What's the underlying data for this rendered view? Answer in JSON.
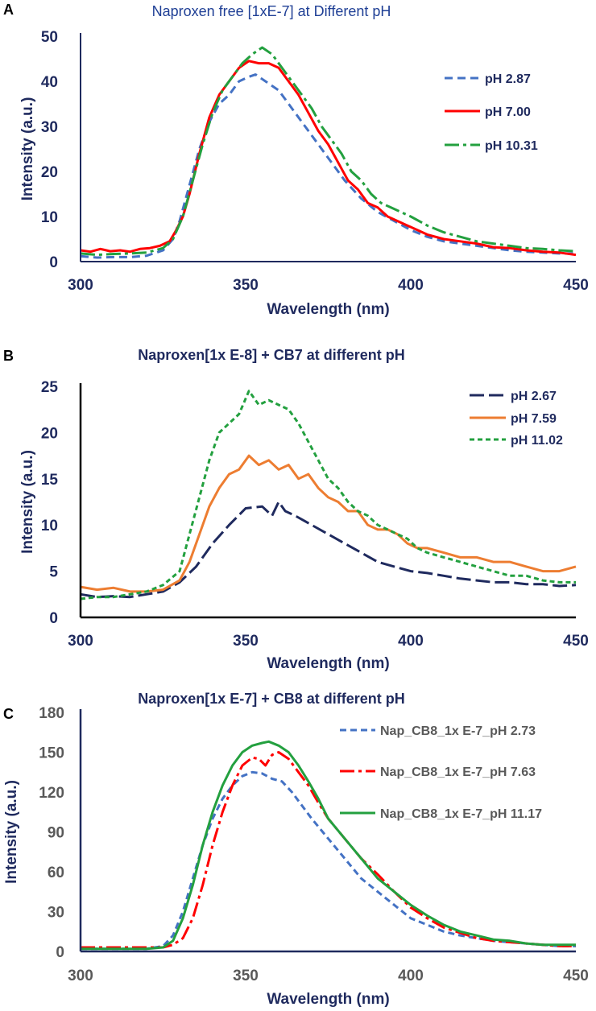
{
  "chart_data": [
    {
      "type": "line",
      "panel": "A",
      "title": "Naproxen free [1xE-7] at Different pH",
      "xlabel": "Wavelength (nm)",
      "ylabel": "Intensity (a.u.)",
      "xlim": [
        300,
        450
      ],
      "ylim": [
        0,
        50
      ],
      "xticks": [
        300,
        350,
        400,
        450
      ],
      "yticks": [
        0,
        10,
        20,
        30,
        40,
        50
      ],
      "grid": false,
      "legend_position": "right",
      "colors": {
        "title": "#1f3f95",
        "axis_text": "#1f2a5e",
        "axis_line": "#1f2a5e"
      },
      "series": [
        {
          "name": "pH 2.87",
          "color": "#4472c4",
          "dash": "10,6",
          "x": [
            300,
            305,
            310,
            315,
            320,
            325,
            328,
            330,
            333,
            336,
            339,
            342,
            345,
            348,
            351,
            353,
            356,
            360,
            365,
            370,
            375,
            380,
            385,
            390,
            395,
            400,
            405,
            410,
            415,
            420,
            425,
            430,
            435,
            440,
            445,
            450
          ],
          "y": [
            1.2,
            0.9,
            1.0,
            1.0,
            1.3,
            2.5,
            5,
            9,
            17,
            25,
            31,
            35,
            37,
            40,
            41,
            41.5,
            40,
            38,
            33,
            28,
            23,
            18,
            14,
            11,
            9,
            7,
            5.5,
            4.5,
            4,
            3.5,
            3,
            2.5,
            2.2,
            2,
            1.8,
            1.8
          ]
        },
        {
          "name": "pH 7.00",
          "color": "#ff0000",
          "dash": "",
          "x": [
            300,
            303,
            306,
            309,
            312,
            315,
            318,
            321,
            324,
            327,
            329,
            331,
            333,
            336,
            339,
            342,
            345,
            348,
            351,
            354,
            357,
            360,
            363,
            366,
            369,
            372,
            375,
            378,
            381,
            384,
            387,
            390,
            393,
            396,
            399,
            402,
            405,
            410,
            415,
            420,
            425,
            430,
            435,
            440,
            445,
            450
          ],
          "y": [
            2.5,
            2.2,
            2.8,
            2.3,
            2.5,
            2.2,
            2.8,
            3.0,
            3.5,
            4.5,
            7,
            10,
            15,
            24,
            32,
            37,
            40,
            43,
            44.5,
            44,
            44,
            43,
            40,
            37,
            33,
            29,
            26,
            22,
            18,
            16,
            13,
            12,
            10,
            9,
            8,
            7,
            6,
            5,
            4.5,
            4,
            3.2,
            3,
            2.5,
            2.2,
            2,
            1.5
          ]
        },
        {
          "name": "pH 10.31",
          "color": "#23a03f",
          "dash": "18,5,4,5",
          "x": [
            300,
            305,
            310,
            315,
            320,
            325,
            328,
            331,
            334,
            337,
            340,
            343,
            346,
            349,
            352,
            355,
            358,
            361,
            364,
            367,
            370,
            373,
            376,
            379,
            382,
            385,
            388,
            391,
            394,
            397,
            400,
            405,
            410,
            415,
            420,
            425,
            430,
            435,
            440,
            445,
            450
          ],
          "y": [
            1.8,
            1.5,
            1.7,
            1.8,
            2.0,
            3.0,
            5,
            10,
            18,
            26,
            33,
            38,
            41,
            44,
            46,
            47.5,
            46,
            43,
            40,
            37,
            34,
            30,
            27,
            24,
            20,
            18,
            15,
            13,
            12,
            11,
            10,
            8,
            6.5,
            5.5,
            4.5,
            4,
            3.5,
            3,
            2.8,
            2.5,
            2.3
          ]
        }
      ]
    },
    {
      "type": "line",
      "panel": "B",
      "title": "Naproxen[1x E-8] + CB7 at different pH",
      "xlabel": "Wavelength (nm)",
      "ylabel": "Intensity (a.u.)",
      "xlim": [
        300,
        450
      ],
      "ylim": [
        0,
        25
      ],
      "xticks": [
        300,
        350,
        400,
        450
      ],
      "yticks": [
        0,
        5,
        10,
        15,
        20,
        25
      ],
      "grid": false,
      "legend_position": "top-right",
      "colors": {
        "title": "#1f2a5e",
        "axis_text": "#1f2a5e",
        "axis_line": "#000000"
      },
      "series": [
        {
          "name": "pH 2.67",
          "color": "#1f2a5e",
          "dash": "18,6",
          "x": [
            300,
            305,
            310,
            315,
            320,
            325,
            330,
            335,
            340,
            345,
            350,
            355,
            358,
            360,
            362,
            365,
            370,
            375,
            380,
            385,
            390,
            395,
            400,
            405,
            410,
            415,
            420,
            425,
            430,
            435,
            440,
            445,
            450
          ],
          "y": [
            2.5,
            2.2,
            2.3,
            2.2,
            2.5,
            2.8,
            3.8,
            5.5,
            8,
            10,
            11.8,
            12,
            11,
            12.5,
            11.5,
            11,
            10,
            9,
            8,
            7,
            6,
            5.5,
            5,
            4.8,
            4.5,
            4.2,
            4,
            3.8,
            3.8,
            3.6,
            3.6,
            3.4,
            3.5
          ]
        },
        {
          "name": "pH 7.59",
          "color": "#ed7d31",
          "dash": "",
          "x": [
            300,
            305,
            310,
            315,
            320,
            325,
            330,
            333,
            336,
            339,
            342,
            345,
            348,
            351,
            354,
            357,
            360,
            363,
            366,
            369,
            372,
            375,
            378,
            381,
            384,
            387,
            390,
            393,
            396,
            399,
            402,
            405,
            410,
            415,
            420,
            425,
            430,
            435,
            440,
            445,
            450
          ],
          "y": [
            3.3,
            3.0,
            3.2,
            2.8,
            2.8,
            3.0,
            4.0,
            6,
            9,
            12,
            14,
            15.5,
            16,
            17.5,
            16.5,
            17,
            16,
            16.5,
            15,
            15.5,
            14,
            13,
            12.5,
            11.5,
            11.5,
            10,
            9.5,
            9.5,
            9,
            8,
            7.5,
            7.5,
            7,
            6.5,
            6.5,
            6,
            6,
            5.5,
            5,
            5,
            5.5
          ]
        },
        {
          "name": "pH 11.02",
          "color": "#23a03f",
          "dash": "6,4",
          "x": [
            300,
            305,
            310,
            315,
            320,
            325,
            330,
            333,
            336,
            339,
            342,
            345,
            348,
            351,
            354,
            357,
            360,
            363,
            366,
            369,
            372,
            375,
            378,
            381,
            384,
            387,
            390,
            393,
            396,
            399,
            402,
            405,
            410,
            415,
            420,
            425,
            430,
            435,
            440,
            445,
            450
          ],
          "y": [
            2.0,
            2.2,
            2.2,
            2.5,
            2.8,
            3.5,
            5,
            9,
            13,
            17,
            20,
            21,
            22,
            24.5,
            23,
            23.5,
            23,
            22.5,
            21,
            19,
            17,
            15,
            14,
            12.5,
            11.5,
            11,
            10,
            9.5,
            9,
            8.5,
            7.5,
            7,
            6.5,
            6,
            5.5,
            5,
            4.5,
            4.5,
            4,
            3.8,
            3.8
          ]
        }
      ]
    },
    {
      "type": "line",
      "panel": "C",
      "title": "Naproxen[1x E-7] + CB8 at different pH",
      "xlabel": "Wavelength (nm)",
      "ylabel": "Intensity (a.u.)",
      "xlim": [
        300,
        450
      ],
      "ylim": [
        0,
        180
      ],
      "xticks": [
        300,
        350,
        400,
        450
      ],
      "yticks": [
        0,
        30,
        60,
        90,
        120,
        150,
        180
      ],
      "grid": false,
      "legend_position": "right",
      "colors": {
        "title": "#1f2a5e",
        "axis_text": "#595959",
        "axis_line": "#1f2a5e"
      },
      "series": [
        {
          "name": "Nap_CB8_1x E-7_pH 2.73",
          "color": "#4472c4",
          "dash": "8,5",
          "x": [
            300,
            310,
            320,
            325,
            328,
            331,
            334,
            337,
            340,
            343,
            346,
            349,
            352,
            355,
            358,
            361,
            364,
            367,
            370,
            375,
            380,
            385,
            390,
            395,
            400,
            405,
            410,
            415,
            420,
            425,
            430,
            435,
            440,
            445,
            450
          ],
          "y": [
            2,
            2,
            2,
            4,
            12,
            30,
            55,
            80,
            100,
            115,
            125,
            132,
            135,
            134,
            130,
            128,
            120,
            110,
            100,
            85,
            70,
            55,
            45,
            35,
            25,
            20,
            15,
            12,
            10,
            8,
            7,
            6,
            5,
            4,
            4
          ]
        },
        {
          "name": "Nap_CB8_1x E-7_pH 7.63",
          "color": "#ff0000",
          "dash": "18,5,4,5",
          "x": [
            300,
            310,
            320,
            325,
            328,
            331,
            334,
            337,
            340,
            343,
            346,
            349,
            352,
            354,
            356,
            358,
            360,
            363,
            366,
            369,
            372,
            375,
            380,
            385,
            390,
            395,
            400,
            405,
            410,
            415,
            420,
            425,
            430,
            435,
            440,
            445,
            450
          ],
          "y": [
            3,
            3,
            3,
            3,
            5,
            10,
            25,
            50,
            80,
            105,
            125,
            140,
            146,
            145,
            140,
            148,
            150,
            145,
            135,
            125,
            112,
            100,
            85,
            70,
            58,
            45,
            33,
            25,
            18,
            14,
            10,
            8,
            7,
            6,
            5,
            4,
            4
          ]
        },
        {
          "name": "Nap_CB8_1x E-7_pH 11.17",
          "color": "#23a03f",
          "dash": "",
          "x": [
            300,
            310,
            320,
            325,
            328,
            331,
            334,
            337,
            340,
            343,
            346,
            349,
            352,
            355,
            357,
            360,
            363,
            366,
            369,
            372,
            375,
            380,
            385,
            390,
            395,
            400,
            405,
            410,
            415,
            420,
            425,
            430,
            435,
            440,
            445,
            450
          ],
          "y": [
            2,
            2,
            2,
            3,
            8,
            25,
            50,
            80,
            105,
            125,
            140,
            150,
            155,
            157,
            158,
            155,
            150,
            140,
            128,
            115,
            100,
            85,
            70,
            55,
            45,
            35,
            27,
            20,
            15,
            12,
            9,
            8,
            6,
            5,
            5,
            5
          ]
        }
      ]
    }
  ]
}
